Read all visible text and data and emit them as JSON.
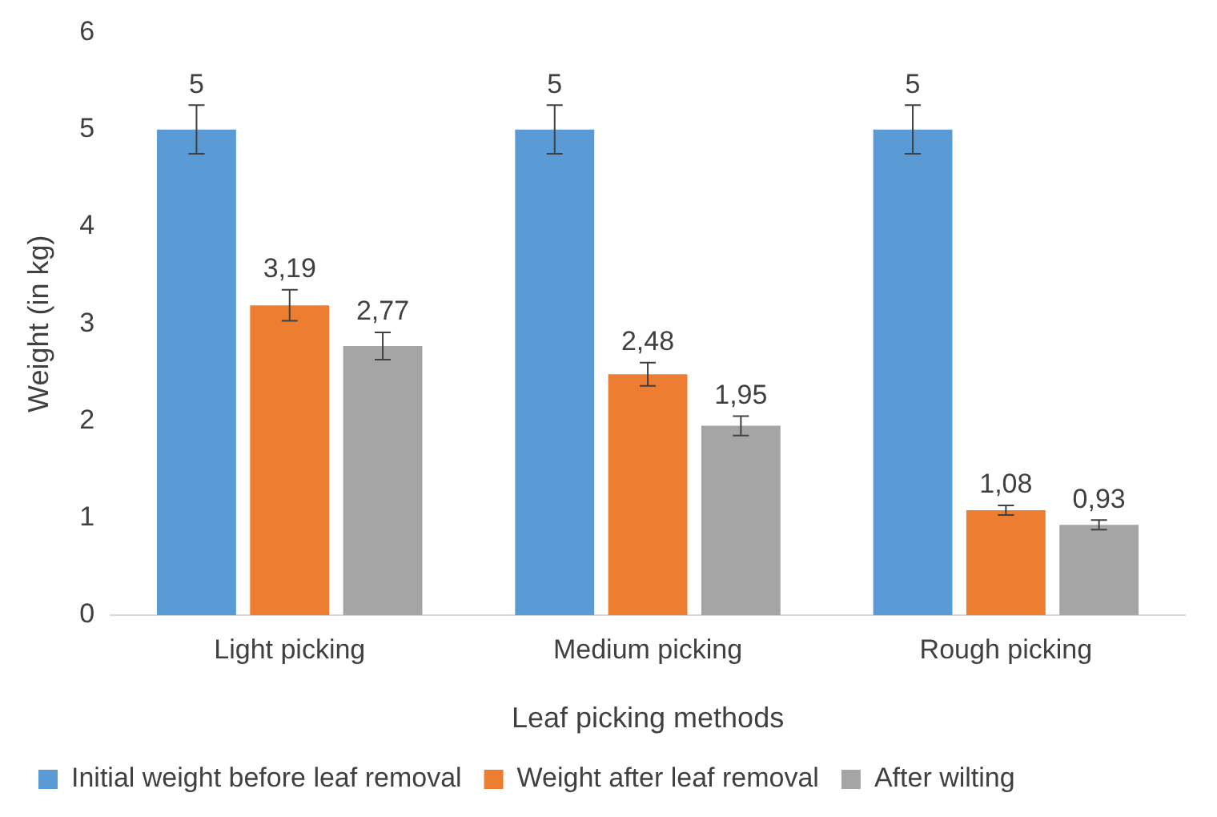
{
  "chart_data": {
    "type": "bar",
    "xlabel": "Leaf picking methods",
    "ylabel": "Weight (in kg)",
    "categories": [
      "Light picking",
      "Medium picking",
      "Rough picking"
    ],
    "series": [
      {
        "name": "Initial weight before leaf removal",
        "color": "#5b9bd5",
        "values": [
          5,
          5,
          5
        ],
        "errors": [
          0.25,
          0.25,
          0.25
        ],
        "value_labels": [
          "5",
          "5",
          "5"
        ]
      },
      {
        "name": "Weight after leaf removal",
        "color": "#ed7d31",
        "values": [
          3.19,
          2.48,
          1.08
        ],
        "errors": [
          0.16,
          0.12,
          0.05
        ],
        "value_labels": [
          "3,19",
          "2,48",
          "1,08"
        ]
      },
      {
        "name": "After wilting",
        "color": "#a5a5a5",
        "values": [
          2.77,
          1.95,
          0.93
        ],
        "errors": [
          0.14,
          0.1,
          0.05
        ],
        "value_labels": [
          "2,77",
          "1,95",
          "0,93"
        ]
      }
    ],
    "ylim": [
      0,
      6
    ],
    "yticks": [
      0,
      1,
      2,
      3,
      4,
      5,
      6
    ],
    "legend": "bottom"
  }
}
